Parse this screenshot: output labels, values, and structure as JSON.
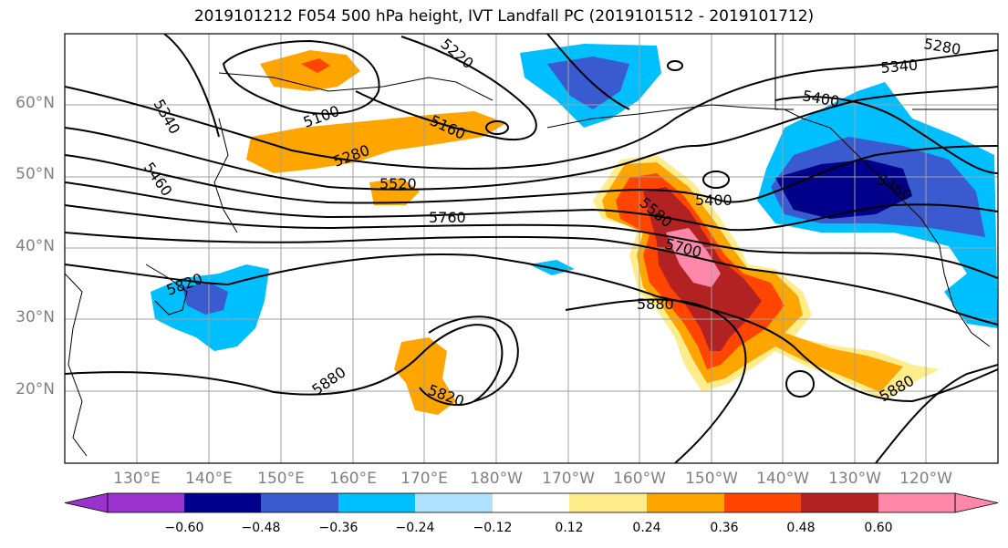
{
  "title": "2019101212 F054 500 hPa height, IVT Landfall PC (2019101512 - 2019101712)",
  "latitude_labels": [
    "60°N",
    "50°N",
    "40°N",
    "30°N",
    "20°N"
  ],
  "longitude_labels": [
    "130°E",
    "140°E",
    "150°E",
    "160°E",
    "170°E",
    "180°W",
    "170°W",
    "160°W",
    "150°W",
    "140°W",
    "130°W",
    "120°W"
  ],
  "contour_labels": [
    "5280",
    "5340",
    "5220",
    "5100",
    "5160",
    "5340",
    "5460",
    "5280",
    "5520",
    "5760",
    "5400",
    "5580",
    "5700",
    "5880",
    "5400",
    "5460",
    "5820",
    "5880",
    "5820",
    "5880"
  ],
  "colorbar": {
    "colors": [
      "#9a32cd",
      "#00008b",
      "#3a5bd0",
      "#00bfff",
      "#b0e2ff",
      "#ffffff",
      "#ffec8b",
      "#ffa500",
      "#ff4500",
      "#b22222",
      "#ff88aa"
    ],
    "tick_labels": [
      "−0.60",
      "−0.48",
      "−0.36",
      "−0.24",
      "−0.12",
      "0.12",
      "0.24",
      "0.36",
      "0.48",
      "0.60"
    ]
  },
  "colors": {
    "contour_line": "#000000",
    "gridline": "#a0a0a0",
    "coastline": "#000000",
    "axis_label": "#808080"
  }
}
